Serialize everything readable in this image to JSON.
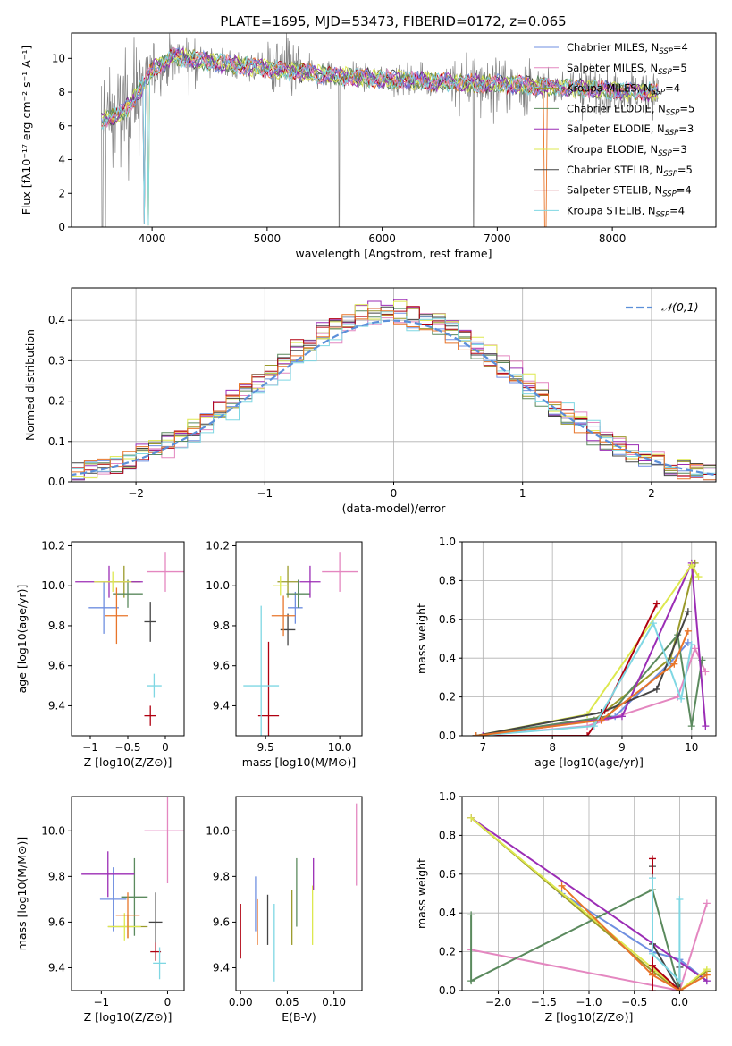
{
  "figure": {
    "title": "PLATE=1695, MJD=53473, FIBERID=0172, z=0.065"
  },
  "colors": {
    "Chabrier MILES": "#6f8fe0",
    "Salpeter MILES": "#e487c0",
    "Kroupa MILES": "#9a9a2a",
    "Chabrier ELODIE": "#5b8a5e",
    "Salpeter ELODIE": "#9b2db5",
    "Kroupa ELODIE": "#dde84f",
    "Chabrier STELIB": "#444444",
    "Salpeter STELIB": "#b00010",
    "Kroupa STELIB": "#7fd7e3",
    "orange": "#e8752a",
    "data": "#808080",
    "gaussian": "#5b8fd9"
  },
  "chart_data": [
    {
      "id": "spectrum",
      "type": "line",
      "title": "PLATE=1695, MJD=53473, FIBERID=0172, z=0.065",
      "xlabel": "wavelength [Angstrom, rest frame]",
      "ylabel": "Flux [fλ10⁻¹⁷ erg cm⁻² s⁻¹ A⁻¹]",
      "xlim": [
        3300,
        8900
      ],
      "ylim": [
        0,
        11.5
      ],
      "xticks": [
        4000,
        5000,
        6000,
        7000,
        8000
      ],
      "yticks": [
        0,
        2,
        4,
        6,
        8,
        10
      ],
      "legend": [
        "Chabrier MILES, N_SSP=4",
        "Salpeter MILES, N_SSP=5",
        "Kroupa MILES, N_SSP=4",
        "Chabrier ELODIE, N_SSP=5",
        "Salpeter ELODIE, N_SSP=3",
        "Kroupa ELODIE, N_SSP=3",
        "Chabrier STELIB, N_SSP=5",
        "Salpeter STELIB, N_SSP=4",
        "Kroupa STELIB, N_SSP=4"
      ],
      "legend_position": "upper-right",
      "continuum_anchors": [
        [
          3560,
          6.3
        ],
        [
          3700,
          6.6
        ],
        [
          3800,
          7.2
        ],
        [
          3900,
          8.2
        ],
        [
          4000,
          9.3
        ],
        [
          4200,
          10.1
        ],
        [
          4500,
          9.8
        ],
        [
          5000,
          9.4
        ],
        [
          5500,
          9.0
        ],
        [
          6000,
          8.8
        ],
        [
          6500,
          8.6
        ],
        [
          7000,
          8.5
        ],
        [
          7500,
          8.3
        ],
        [
          8000,
          8.1
        ],
        [
          8400,
          8.0
        ]
      ]
    },
    {
      "id": "residuals",
      "type": "histogram",
      "xlabel": "(data-model)/error",
      "ylabel": "Normed distribution",
      "xlim": [
        -2.5,
        2.5
      ],
      "ylim": [
        0,
        0.48
      ],
      "xticks": [
        -2,
        -1,
        0,
        1,
        2
      ],
      "yticks": [
        0.0,
        0.1,
        0.2,
        0.3,
        0.4
      ],
      "bin_width": 0.1,
      "legend": [
        "𝒩(0,1)"
      ],
      "grid": true
    },
    {
      "id": "age_vs_Z",
      "type": "scatter-errorbar",
      "xlabel": "Z [log10(Z/Z⊙)]",
      "ylabel": "age  [log10(age/yr)]",
      "xlim": [
        -1.25,
        0.25
      ],
      "ylim": [
        9.25,
        10.22
      ],
      "xticks": [
        -1,
        -0.5,
        0
      ],
      "yticks": [
        9.4,
        9.6,
        9.8,
        10.0,
        10.2
      ],
      "points": [
        {
          "model": "Chabrier MILES",
          "x": -0.82,
          "y": 9.89,
          "xerr": 0.2,
          "yerr": 0.13
        },
        {
          "model": "Salpeter MILES",
          "x": 0.0,
          "y": 10.07,
          "xerr": 0.25,
          "yerr": 0.1
        },
        {
          "model": "Kroupa MILES",
          "x": -0.55,
          "y": 10.02,
          "xerr": 0.22,
          "yerr": 0.08
        },
        {
          "model": "Chabrier ELODIE",
          "x": -0.5,
          "y": 9.96,
          "xerr": 0.2,
          "yerr": 0.07
        },
        {
          "model": "Salpeter ELODIE",
          "x": -0.75,
          "y": 10.02,
          "xerr": 0.45,
          "yerr": 0.08
        },
        {
          "model": "Kroupa ELODIE",
          "x": -0.7,
          "y": 10.02,
          "xerr": 0.25,
          "yerr": 0.05
        },
        {
          "model": "Chabrier STELIB",
          "x": -0.2,
          "y": 9.82,
          "xerr": 0.08,
          "yerr": 0.1
        },
        {
          "model": "Salpeter STELIB",
          "x": -0.2,
          "y": 9.35,
          "xerr": 0.08,
          "yerr": 0.05
        },
        {
          "model": "Kroupa STELIB",
          "x": -0.15,
          "y": 9.5,
          "xerr": 0.1,
          "yerr": 0.06
        },
        {
          "model": "orange",
          "x": -0.65,
          "y": 9.85,
          "xerr": 0.15,
          "yerr": 0.14
        }
      ]
    },
    {
      "id": "age_vs_mass",
      "type": "scatter-errorbar",
      "xlabel": "mass [log10(M/M⊙)]",
      "ylabel": "",
      "xlim": [
        9.3,
        10.15
      ],
      "ylim": [
        9.25,
        10.22
      ],
      "xticks": [
        9.5,
        10.0
      ],
      "yticks": [
        9.4,
        9.6,
        9.8,
        10.0,
        10.2
      ],
      "points": [
        {
          "model": "Chabrier MILES",
          "x": 9.7,
          "y": 9.89,
          "xerr": 0.05,
          "yerr": 0.08
        },
        {
          "model": "Salpeter MILES",
          "x": 10.0,
          "y": 10.07,
          "xerr": 0.12,
          "yerr": 0.1
        },
        {
          "model": "Kroupa MILES",
          "x": 9.65,
          "y": 10.02,
          "xerr": 0.07,
          "yerr": 0.08
        },
        {
          "model": "Chabrier ELODIE",
          "x": 9.72,
          "y": 9.96,
          "xerr": 0.08,
          "yerr": 0.07
        },
        {
          "model": "Salpeter ELODIE",
          "x": 9.8,
          "y": 10.02,
          "xerr": 0.07,
          "yerr": 0.08
        },
        {
          "model": "Kroupa ELODIE",
          "x": 9.6,
          "y": 10.0,
          "xerr": 0.05,
          "yerr": 0.05
        },
        {
          "model": "Chabrier STELIB",
          "x": 9.65,
          "y": 9.78,
          "xerr": 0.05,
          "yerr": 0.08
        },
        {
          "model": "Salpeter STELIB",
          "x": 9.52,
          "y": 9.35,
          "xerr": 0.07,
          "yerr": 0.37
        },
        {
          "model": "Kroupa STELIB",
          "x": 9.47,
          "y": 9.5,
          "xerr": 0.12,
          "yerr": 0.4
        },
        {
          "model": "orange",
          "x": 9.62,
          "y": 9.85,
          "xerr": 0.08,
          "yerr": 0.1
        }
      ]
    },
    {
      "id": "weight_vs_age",
      "type": "line",
      "xlabel": "age  [log10(age/yr)]",
      "ylabel": "mass weight",
      "xlim": [
        6.7,
        10.35
      ],
      "ylim": [
        0,
        1.0
      ],
      "xticks": [
        7,
        8,
        9,
        10
      ],
      "yticks": [
        0.0,
        0.2,
        0.4,
        0.6,
        0.8,
        1.0
      ],
      "grid": true,
      "series": [
        {
          "model": "Chabrier MILES",
          "x": [
            6.9,
            8.9,
            9.7,
            9.95
          ],
          "y": [
            0.0,
            0.1,
            0.38,
            0.48
          ]
        },
        {
          "model": "Salpeter MILES",
          "x": [
            6.9,
            8.5,
            9.8,
            10.05,
            10.2
          ],
          "y": [
            0.0,
            0.05,
            0.2,
            0.45,
            0.33
          ]
        },
        {
          "model": "Kroupa MILES",
          "x": [
            6.9,
            8.6,
            9.7,
            10.05
          ],
          "y": [
            0.0,
            0.08,
            0.4,
            0.89
          ]
        },
        {
          "model": "Chabrier ELODIE",
          "x": [
            6.9,
            8.8,
            9.8,
            10.0,
            10.15
          ],
          "y": [
            0.0,
            0.1,
            0.52,
            0.05,
            0.39
          ]
        },
        {
          "model": "Salpeter ELODIE",
          "x": [
            7.0,
            9.0,
            10.0,
            10.2
          ],
          "y": [
            0.0,
            0.1,
            0.89,
            0.05
          ]
        },
        {
          "model": "Kroupa ELODIE",
          "x": [
            6.9,
            8.5,
            10.0,
            10.1
          ],
          "y": [
            0.0,
            0.11,
            0.88,
            0.82
          ]
        },
        {
          "model": "Chabrier STELIB",
          "x": [
            6.9,
            8.7,
            9.5,
            9.95
          ],
          "y": [
            0.0,
            0.12,
            0.24,
            0.64
          ]
        },
        {
          "model": "Salpeter STELIB",
          "x": [
            6.9,
            8.5,
            8.75,
            9.5
          ],
          "y": [
            0.0,
            0.0,
            0.13,
            0.68
          ]
        },
        {
          "model": "Kroupa STELIB",
          "x": [
            6.9,
            8.6,
            9.45,
            9.85,
            10.0
          ],
          "y": [
            0.0,
            0.05,
            0.58,
            0.19,
            0.47
          ]
        },
        {
          "model": "orange",
          "x": [
            6.9,
            8.7,
            9.75,
            9.95
          ],
          "y": [
            0.0,
            0.08,
            0.37,
            0.54
          ]
        }
      ]
    },
    {
      "id": "mass_vs_Z",
      "type": "scatter-errorbar",
      "xlabel": "Z [log10(Z/Z⊙)]",
      "ylabel": "mass [log10(M/M⊙)]",
      "xlim": [
        -1.45,
        0.25
      ],
      "ylim": [
        9.3,
        10.15
      ],
      "xticks": [
        -1,
        0
      ],
      "yticks": [
        9.4,
        9.6,
        9.8,
        10.0
      ],
      "points": [
        {
          "model": "Chabrier MILES",
          "x": -0.82,
          "y": 9.7,
          "xerr": 0.2,
          "yerr": 0.14
        },
        {
          "model": "Salpeter MILES",
          "x": 0.0,
          "y": 10.0,
          "xerr": 0.35,
          "yerr": 0.23
        },
        {
          "model": "Kroupa MILES",
          "x": -0.6,
          "y": 9.58,
          "xerr": 0.3,
          "yerr": 0.05
        },
        {
          "model": "Chabrier ELODIE",
          "x": -0.5,
          "y": 9.71,
          "xerr": 0.2,
          "yerr": 0.17
        },
        {
          "model": "Salpeter ELODIE",
          "x": -0.9,
          "y": 9.81,
          "xerr": 0.4,
          "yerr": 0.1
        },
        {
          "model": "Kroupa ELODIE",
          "x": -0.65,
          "y": 9.58,
          "xerr": 0.25,
          "yerr": 0.06
        },
        {
          "model": "Chabrier STELIB",
          "x": -0.18,
          "y": 9.6,
          "xerr": 0.1,
          "yerr": 0.13
        },
        {
          "model": "Salpeter STELIB",
          "x": -0.18,
          "y": 9.47,
          "xerr": 0.08,
          "yerr": 0.04
        },
        {
          "model": "Kroupa STELIB",
          "x": -0.12,
          "y": 9.42,
          "xerr": 0.1,
          "yerr": 0.07
        },
        {
          "model": "orange",
          "x": -0.6,
          "y": 9.63,
          "xerr": 0.18,
          "yerr": 0.1
        }
      ]
    },
    {
      "id": "mass_vs_ebv",
      "type": "errorbar",
      "xlabel": "E(B-V)",
      "ylabel": "",
      "xlim": [
        -0.005,
        0.13
      ],
      "ylim": [
        9.3,
        10.15
      ],
      "xticks": [
        0.0,
        0.05,
        0.1
      ],
      "yticks": [
        9.4,
        9.6,
        9.8,
        10.0
      ],
      "points": [
        {
          "model": "Salpeter STELIB",
          "x": 0.0,
          "y": 9.56,
          "yerr": 0.12
        },
        {
          "model": "Chabrier MILES",
          "x": 0.016,
          "y": 9.68,
          "yerr": 0.12
        },
        {
          "model": "orange",
          "x": 0.018,
          "y": 9.6,
          "yerr": 0.1
        },
        {
          "model": "Chabrier STELIB",
          "x": 0.029,
          "y": 9.61,
          "yerr": 0.11
        },
        {
          "model": "Kroupa STELIB",
          "x": 0.036,
          "y": 9.51,
          "yerr": 0.17
        },
        {
          "model": "Kroupa MILES",
          "x": 0.055,
          "y": 9.62,
          "yerr": 0.12
        },
        {
          "model": "Chabrier ELODIE",
          "x": 0.06,
          "y": 9.73,
          "yerr": 0.15
        },
        {
          "model": "Kroupa ELODIE",
          "x": 0.077,
          "y": 9.63,
          "yerr": 0.13
        },
        {
          "model": "Salpeter ELODIE",
          "x": 0.078,
          "y": 9.81,
          "yerr": 0.07
        },
        {
          "model": "Salpeter MILES",
          "x": 0.124,
          "y": 9.94,
          "yerr": 0.18
        }
      ]
    },
    {
      "id": "weight_vs_Z",
      "type": "line",
      "xlabel": "Z [log10(Z/Z⊙)]",
      "ylabel": "mass weight",
      "xlim": [
        -2.4,
        0.4
      ],
      "ylim": [
        0,
        1.0
      ],
      "xticks": [
        -2.0,
        -1.5,
        -1.0,
        -0.5,
        0.0
      ],
      "yticks": [
        0.0,
        0.2,
        0.4,
        0.6,
        0.8,
        1.0
      ],
      "grid": true,
      "series": [
        {
          "model": "Chabrier MILES",
          "x": [
            -1.3,
            -0.3,
            0.0,
            0.3
          ],
          "y": [
            0.5,
            0.2,
            0.16,
            0.05
          ]
        },
        {
          "model": "Salpeter MILES",
          "x": [
            -2.3,
            0.0,
            0.3
          ],
          "y": [
            0.21,
            0.0,
            0.45
          ]
        },
        {
          "model": "Kroupa MILES",
          "x": [
            -2.3,
            -0.3,
            0.0,
            0.3
          ],
          "y": [
            0.89,
            0.1,
            0.0,
            0.1
          ]
        },
        {
          "model": "Chabrier ELODIE",
          "x": [
            -2.3,
            -2.3,
            -0.3,
            0.0
          ],
          "y": [
            0.39,
            0.05,
            0.52,
            0.0
          ]
        },
        {
          "model": "Salpeter ELODIE",
          "x": [
            -2.3,
            0.3
          ],
          "y": [
            0.89,
            0.05
          ]
        },
        {
          "model": "Kroupa ELODIE",
          "x": [
            -2.3,
            0.0,
            0.3
          ],
          "y": [
            0.89,
            0.0,
            0.11
          ]
        },
        {
          "model": "Chabrier STELIB",
          "x": [
            -0.3,
            -0.3,
            0.0,
            0.0
          ],
          "y": [
            0.64,
            0.24,
            0.0,
            0.12
          ]
        },
        {
          "model": "Salpeter STELIB",
          "x": [
            -0.3,
            -0.3,
            -0.3,
            0.0
          ],
          "y": [
            0.68,
            0.0,
            0.13,
            0.0
          ]
        },
        {
          "model": "Kroupa STELIB",
          "x": [
            -0.3,
            -0.3,
            0.0,
            0.0
          ],
          "y": [
            0.58,
            0.19,
            0.05,
            0.47
          ]
        },
        {
          "model": "orange",
          "x": [
            -1.3,
            -0.3,
            0.0,
            0.3
          ],
          "y": [
            0.54,
            0.08,
            0.0,
            0.08
          ]
        }
      ]
    }
  ]
}
